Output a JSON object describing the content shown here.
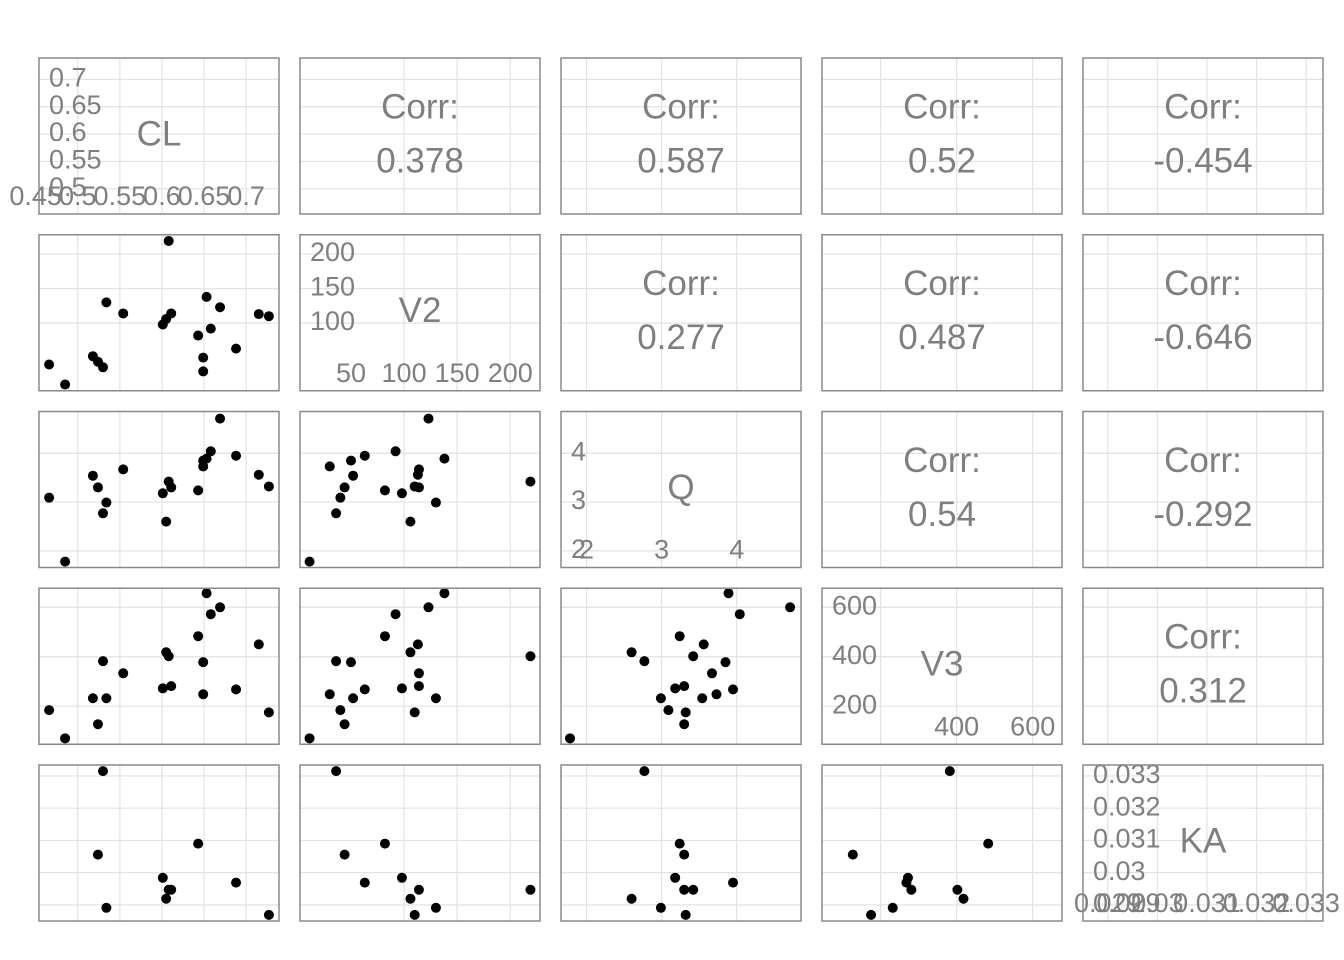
{
  "chart_data": {
    "type": "scatter-matrix",
    "color": "#000000",
    "grid": true,
    "corr_label": "Corr:",
    "variables": [
      {
        "name": "CL",
        "lim": [
          0.454,
          0.739
        ],
        "xticks": [
          0.45,
          0.5,
          0.55,
          0.6,
          0.65,
          0.7
        ],
        "yticks": [
          0.5,
          0.55,
          0.6,
          0.65,
          0.7
        ],
        "values": [
          0.466,
          0.485,
          0.518,
          0.524,
          0.53,
          0.534,
          0.554,
          0.601,
          0.605,
          0.608,
          0.611,
          0.643,
          0.649,
          0.649,
          0.653,
          0.658,
          0.669,
          0.688,
          0.715,
          0.727
        ]
      },
      {
        "name": "V2",
        "lim": [
          2,
          228
        ],
        "xticks": [
          50,
          100,
          150,
          200
        ],
        "yticks": [
          100,
          150,
          200
        ],
        "values": [
          40,
          11,
          52,
          44,
          36,
          130,
          114,
          98,
          106,
          219,
          114,
          82,
          50,
          30,
          138,
          92,
          123,
          63,
          113,
          110
        ]
      },
      {
        "name": "Q",
        "lim": [
          1.66,
          4.855
        ],
        "xticks": [
          2,
          3,
          4
        ],
        "yticks": [
          2,
          3,
          4
        ],
        "values": [
          3.09,
          1.78,
          3.54,
          3.3,
          2.77,
          2.99,
          3.67,
          3.18,
          2.6,
          3.42,
          3.3,
          3.24,
          3.85,
          3.73,
          3.89,
          4.04,
          4.71,
          3.95,
          3.56,
          3.32
        ]
      },
      {
        "name": "V3",
        "lim": [
          46,
          677
        ],
        "xticks": [
          400,
          600
        ],
        "yticks": [
          200,
          400,
          600
        ],
        "values": [
          184,
          70,
          232,
          127,
          382,
          232,
          333,
          272,
          418,
          402,
          281,
          483,
          378,
          248,
          657,
          572,
          600,
          268,
          450,
          175
        ]
      },
      {
        "name": "KA",
        "lim": [
          0.0285,
          0.03334
        ],
        "xticks": [
          0.029,
          0.03,
          0.031,
          0.032,
          0.033
        ],
        "yticks": [
          0.029,
          0.03,
          0.031,
          0.032,
          0.033
        ],
        "values": [
          null,
          null,
          null,
          0.03056,
          0.03315,
          0.02891,
          null,
          0.02984,
          0.02919,
          0.02947,
          0.02947,
          0.0309,
          null,
          null,
          null,
          null,
          null,
          0.02969,
          null,
          0.02869
        ]
      }
    ],
    "correlations": [
      [
        0.378,
        0.587,
        0.52,
        -0.454
      ],
      [
        0.277,
        0.487,
        -0.646
      ],
      [
        0.54,
        -0.292
      ],
      [
        0.312
      ]
    ]
  }
}
